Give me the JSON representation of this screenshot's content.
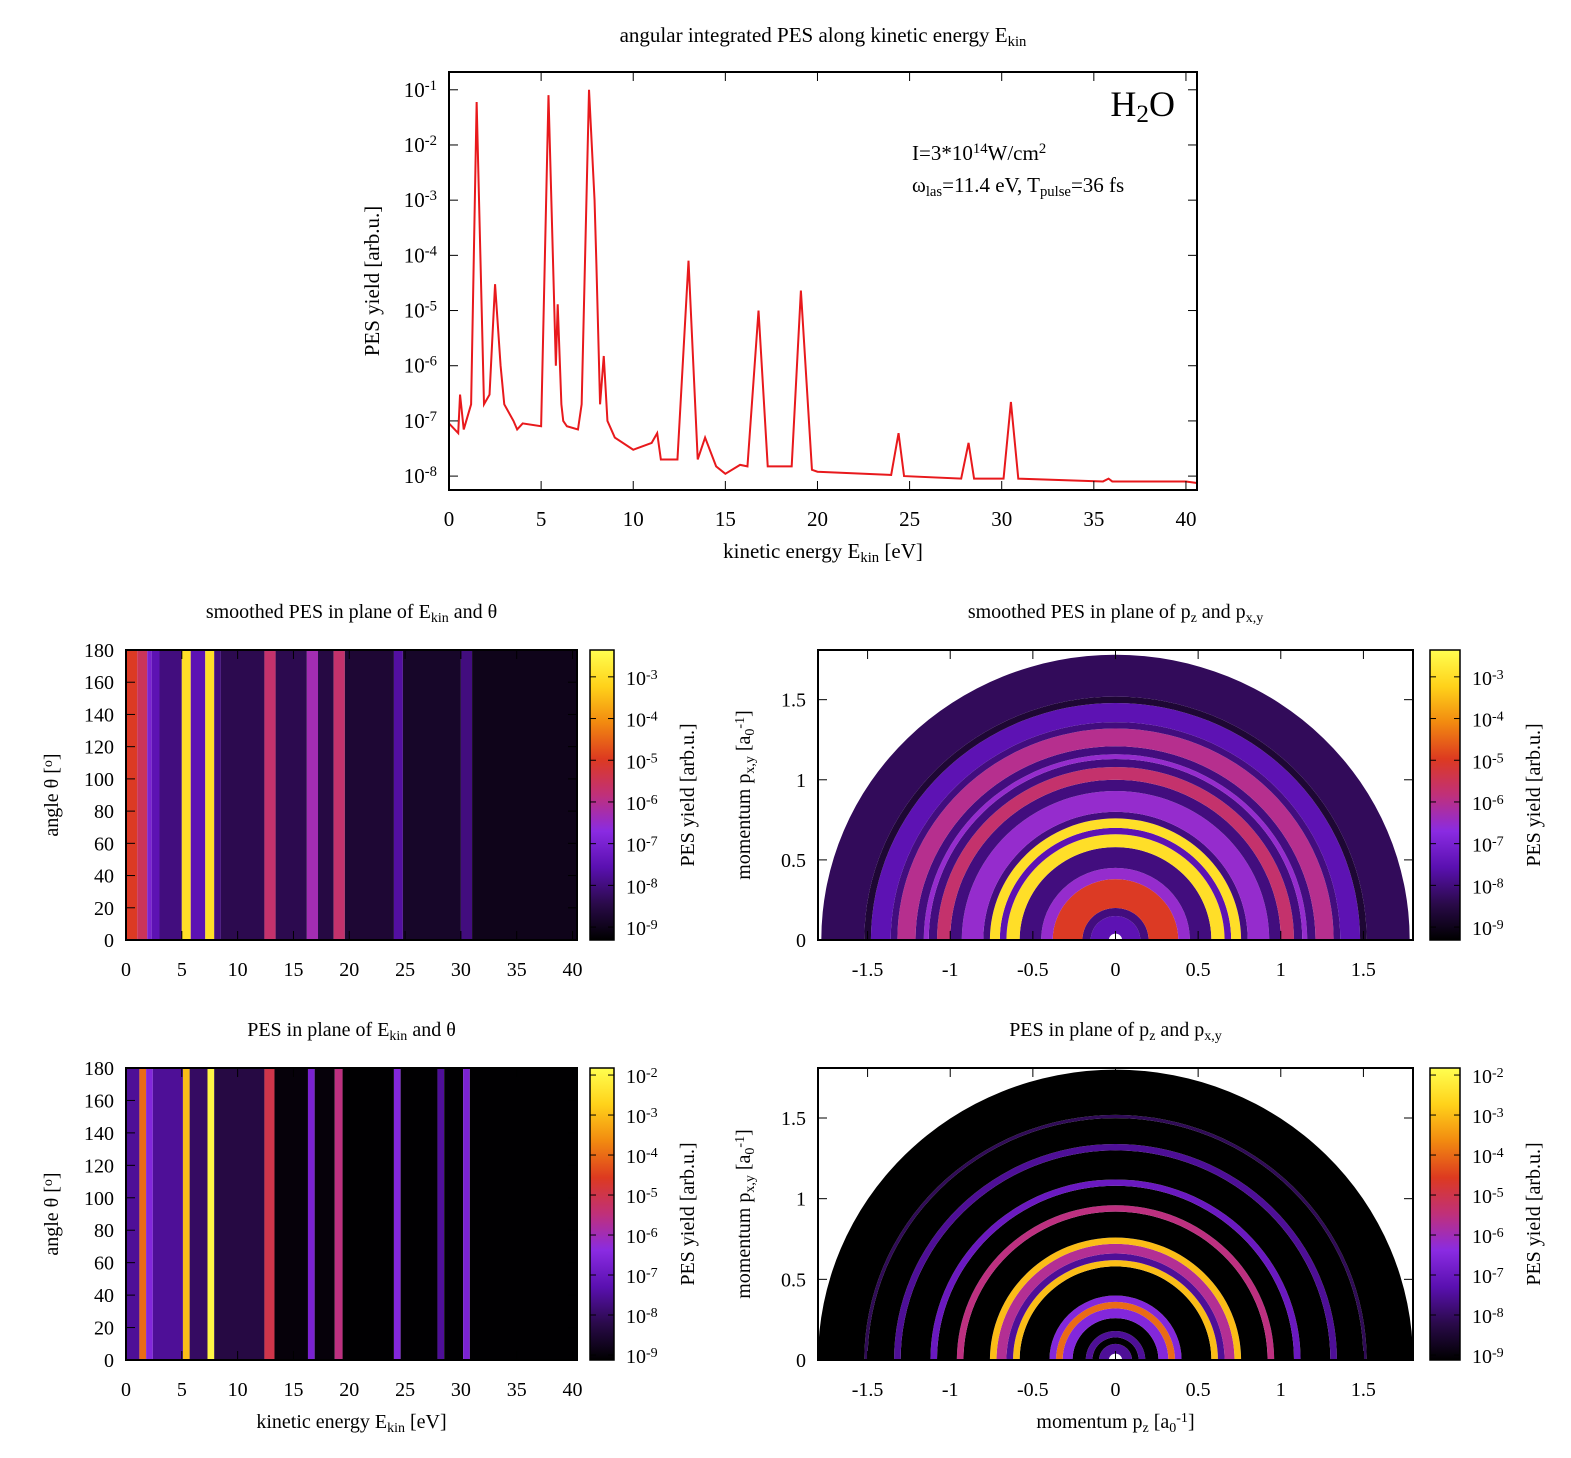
{
  "chart_data": [
    {
      "type": "line",
      "title": [
        "angular integrated PES along kinetic energy E",
        {
          "sub": "kin"
        }
      ],
      "xlabel": [
        "kinetic energy E",
        {
          "sub": "kin"
        },
        " [eV]"
      ],
      "ylabel": "PES yield [arb.u.]",
      "annotations": [
        [
          "H",
          {
            "sub": "2"
          },
          "O"
        ],
        [
          "I=3*10",
          {
            "sup": "14"
          },
          "W/cm",
          {
            "sup": "2"
          }
        ],
        [
          "ω",
          {
            "sub": "las"
          },
          "=11.4 eV, T",
          {
            "sub": "pulse"
          },
          "=36 fs"
        ]
      ],
      "color": "#e8191c",
      "log_y": true,
      "xlim": [
        0,
        40.6
      ],
      "ylim": [
        5.6e-09,
        0.21
      ],
      "xticks": [
        0,
        5,
        10,
        15,
        20,
        25,
        30,
        35,
        40
      ],
      "yticks": [
        {
          "value": 1e-08,
          "label": [
            "10",
            {
              "sup": "-8"
            }
          ]
        },
        {
          "value": 1e-07,
          "label": [
            "10",
            {
              "sup": "-7"
            }
          ]
        },
        {
          "value": 1e-06,
          "label": [
            "10",
            {
              "sup": "-6"
            }
          ]
        },
        {
          "value": 1e-05,
          "label": [
            "10",
            {
              "sup": "-5"
            }
          ]
        },
        {
          "value": 0.0001,
          "label": [
            "10",
            {
              "sup": "-4"
            }
          ]
        },
        {
          "value": 0.001,
          "label": [
            "10",
            {
              "sup": "-3"
            }
          ]
        },
        {
          "value": 0.01,
          "label": [
            "10",
            {
              "sup": "-2"
            }
          ]
        },
        {
          "value": 0.1,
          "label": [
            "10",
            {
              "sup": "-1"
            }
          ]
        }
      ],
      "x": [
        0,
        0.5,
        0.6,
        0.8,
        1.2,
        1.5,
        1.9,
        2.2,
        2.5,
        2.8,
        3.0,
        3.5,
        3.7,
        4.0,
        5.0,
        5.4,
        5.8,
        5.9,
        6.1,
        6.2,
        6.4,
        7.0,
        7.2,
        7.6,
        7.9,
        8.0,
        8.2,
        8.4,
        8.6,
        9.0,
        10,
        11,
        11.3,
        11.5,
        12.4,
        13.0,
        13.5,
        13.9,
        14.5,
        15,
        15.8,
        16.2,
        16.8,
        17.3,
        18.6,
        19.1,
        19.7,
        20,
        24,
        24.4,
        24.7,
        27.8,
        28.2,
        28.5,
        30.1,
        30.5,
        30.9,
        35.5,
        35.8,
        36,
        40,
        40.6
      ],
      "values": [
        9e-08,
        6e-08,
        3e-07,
        7e-08,
        2e-07,
        0.06,
        2e-07,
        3e-07,
        3e-05,
        1e-06,
        2e-07,
        1e-07,
        7e-08,
        9e-08,
        8e-08,
        0.08,
        1e-06,
        1.3e-05,
        2e-07,
        1e-07,
        8e-08,
        7e-08,
        2e-07,
        0.1,
        0.001,
        7e-05,
        2e-07,
        1.5e-06,
        1e-07,
        5e-08,
        3e-08,
        4e-08,
        6e-08,
        2e-08,
        2e-08,
        8e-05,
        2e-08,
        5e-08,
        1.5e-08,
        1.1e-08,
        1.6e-08,
        1.5e-08,
        1e-05,
        1.5e-08,
        1.5e-08,
        2.3e-05,
        1.3e-08,
        1.2e-08,
        1.05e-08,
        6e-08,
        1e-08,
        9e-09,
        4e-08,
        9e-09,
        9e-09,
        2.2e-07,
        9e-09,
        8e-09,
        9e-09,
        8e-09,
        8e-09,
        7.5e-09
      ]
    },
    {
      "type": "heatmap",
      "title": [
        "smoothed PES in plane of E",
        {
          "sub": "kin"
        },
        " and θ"
      ],
      "ylabel": [
        "angle θ [",
        {
          "sup": "o"
        },
        "]"
      ],
      "zlabel": "PES yield [arb.u.]",
      "xlim": [
        0,
        40.4
      ],
      "ylim": [
        0,
        180
      ],
      "xticks": [
        0,
        5,
        10,
        15,
        20,
        25,
        30,
        35,
        40
      ],
      "yticks": [
        0,
        20,
        40,
        60,
        80,
        100,
        120,
        140,
        160,
        180
      ],
      "log_z": true,
      "zlim": [
        4.9e-10,
        0.0044
      ],
      "zticks": [
        {
          "value": 1e-09,
          "label": [
            "10",
            {
              "sup": "-9"
            }
          ]
        },
        {
          "value": 1e-08,
          "label": [
            "10",
            {
              "sup": "-8"
            }
          ]
        },
        {
          "value": 1e-07,
          "label": [
            "10",
            {
              "sup": "-7"
            }
          ]
        },
        {
          "value": 1e-06,
          "label": [
            "10",
            {
              "sup": "-6"
            }
          ]
        },
        {
          "value": 1e-05,
          "label": [
            "10",
            {
              "sup": "-5"
            }
          ]
        },
        {
          "value": 0.0001,
          "label": [
            "10",
            {
              "sup": "-4"
            }
          ]
        },
        {
          "value": 0.001,
          "label": [
            "10",
            {
              "sup": "-3"
            }
          ]
        }
      ],
      "colormap": [
        "#000000",
        "#2a0a4a",
        "#5a10b0",
        "#8a2be2",
        "#c0307a",
        "#dd3a20",
        "#f28a10",
        "#ffd21a",
        "#ffff50"
      ],
      "x_bins": [
        0,
        1,
        1.9,
        2.3,
        3.0,
        5.0,
        5.8,
        7.1,
        7.9,
        8.5,
        12.4,
        13.4,
        16.2,
        17.2,
        18.6,
        19.6,
        24.0,
        24.8,
        30.0,
        31.0,
        40.4
      ],
      "values": [
        1e-05,
        3e-06,
        1e-07,
        3e-08,
        1e-08,
        0.001,
        3e-08,
        0.001,
        1e-08,
        4e-09,
        2e-06,
        4e-09,
        5e-07,
        3e-09,
        2e-06,
        2e-09,
        2e-08,
        1.5e-09,
        1e-08,
        1e-09
      ]
    },
    {
      "type": "polar_heatmap",
      "title": [
        "smoothed PES in plane of p",
        {
          "sub": "z"
        },
        " and p",
        {
          "sub": "x,y"
        }
      ],
      "ylabel": [
        "momentum p",
        {
          "sub": "x,y"
        },
        " [a",
        {
          "sub": "0"
        },
        {
          "sup": "-1"
        },
        "]"
      ],
      "zlabel": "PES yield [arb.u.]",
      "xlim": [
        -1.8,
        1.8
      ],
      "ylim": [
        0,
        1.81
      ],
      "xticks": [
        -1.5,
        -1,
        -0.5,
        0,
        0.5,
        1,
        1.5
      ],
      "yticks": [
        0,
        0.5,
        1,
        1.5
      ],
      "log_z": true,
      "zlim": [
        4.9e-10,
        0.0044
      ],
      "zticks": [
        {
          "value": 1e-09,
          "label": [
            "10",
            {
              "sup": "-9"
            }
          ]
        },
        {
          "value": 1e-08,
          "label": [
            "10",
            {
              "sup": "-8"
            }
          ]
        },
        {
          "value": 1e-07,
          "label": [
            "10",
            {
              "sup": "-7"
            }
          ]
        },
        {
          "value": 1e-06,
          "label": [
            "10",
            {
              "sup": "-6"
            }
          ]
        },
        {
          "value": 1e-05,
          "label": [
            "10",
            {
              "sup": "-5"
            }
          ]
        },
        {
          "value": 0.0001,
          "label": [
            "10",
            {
              "sup": "-4"
            }
          ]
        },
        {
          "value": 0.001,
          "label": [
            "10",
            {
              "sup": "-3"
            }
          ]
        }
      ],
      "colormap": [
        "#000000",
        "#2a0a4a",
        "#5a10b0",
        "#8a2be2",
        "#c0307a",
        "#dd3a20",
        "#f28a10",
        "#ffd21a",
        "#ffff50"
      ],
      "r_bins": [
        0.04,
        0.15,
        0.2,
        0.38,
        0.45,
        0.58,
        0.66,
        0.7,
        0.76,
        0.8,
        0.93,
        1.0,
        1.08,
        1.13,
        1.16,
        1.21,
        1.32,
        1.36,
        1.48,
        1.52,
        1.78
      ],
      "values": [
        3e-08,
        1e-08,
        1e-05,
        3e-07,
        1e-08,
        0.001,
        3e-08,
        0.001,
        1e-08,
        3e-07,
        1e-08,
        2e-06,
        1e-08,
        3e-07,
        1e-08,
        1e-06,
        1e-08,
        3e-08,
        2e-09,
        5e-09
      ]
    },
    {
      "type": "heatmap",
      "title": [
        "PES in plane of E",
        {
          "sub": "kin"
        },
        " and θ"
      ],
      "xlabel": [
        "kinetic energy E",
        {
          "sub": "kin"
        },
        " [eV]"
      ],
      "ylabel": [
        "angle θ [",
        {
          "sup": "o"
        },
        "]"
      ],
      "zlabel": "PES yield [arb.u.]",
      "xlim": [
        0,
        40.4
      ],
      "ylim": [
        0,
        180
      ],
      "xticks": [
        0,
        5,
        10,
        15,
        20,
        25,
        30,
        35,
        40
      ],
      "yticks": [
        0,
        20,
        40,
        60,
        80,
        100,
        120,
        140,
        160,
        180
      ],
      "log_z": true,
      "zlim": [
        7.5e-10,
        0.015
      ],
      "zticks": [
        {
          "value": 1e-09,
          "label": [
            "10",
            {
              "sup": "-9"
            }
          ]
        },
        {
          "value": 1e-08,
          "label": [
            "10",
            {
              "sup": "-8"
            }
          ]
        },
        {
          "value": 1e-07,
          "label": [
            "10",
            {
              "sup": "-7"
            }
          ]
        },
        {
          "value": 1e-06,
          "label": [
            "10",
            {
              "sup": "-6"
            }
          ]
        },
        {
          "value": 1e-05,
          "label": [
            "10",
            {
              "sup": "-5"
            }
          ]
        },
        {
          "value": 0.0001,
          "label": [
            "10",
            {
              "sup": "-4"
            }
          ]
        },
        {
          "value": 0.001,
          "label": [
            "10",
            {
              "sup": "-3"
            }
          ]
        },
        {
          "value": 0.01,
          "label": [
            "10",
            {
              "sup": "-2"
            }
          ]
        }
      ],
      "colormap": [
        "#000000",
        "#2a0a4a",
        "#5a10b0",
        "#8a2be2",
        "#c0307a",
        "#dd3a20",
        "#f28a10",
        "#ffd21a",
        "#ffff50"
      ],
      "x_bins": [
        0,
        1.2,
        1.8,
        2.4,
        5.1,
        5.7,
        7.3,
        7.9,
        12.4,
        13.3,
        16.3,
        16.9,
        18.7,
        19.4,
        24.0,
        24.6,
        27.9,
        28.5,
        30.2,
        30.8,
        40.4
      ],
      "values": [
        3e-08,
        0.0001,
        3e-07,
        3e-08,
        0.001,
        1e-08,
        0.01,
        5e-09,
        1e-05,
        1e-09,
        2e-07,
        1e-09,
        3e-06,
        8e-10,
        3e-07,
        8e-10,
        3e-08,
        8e-10,
        2e-07,
        8e-10
      ]
    },
    {
      "type": "polar_heatmap",
      "title": [
        "PES in plane of p",
        {
          "sub": "z"
        },
        " and p",
        {
          "sub": "x,y"
        }
      ],
      "xlabel": [
        "momentum p",
        {
          "sub": "z"
        },
        " [a",
        {
          "sub": "0"
        },
        {
          "sup": "-1"
        },
        "]"
      ],
      "ylabel": [
        "momentum p",
        {
          "sub": "x,y"
        },
        " [a",
        {
          "sub": "0"
        },
        {
          "sup": "-1"
        },
        "]"
      ],
      "zlabel": "PES yield [arb.u.]",
      "xlim": [
        -1.8,
        1.8
      ],
      "ylim": [
        0,
        1.81
      ],
      "xticks": [
        -1.5,
        -1,
        -0.5,
        0,
        0.5,
        1,
        1.5
      ],
      "yticks": [
        0,
        0.5,
        1,
        1.5
      ],
      "log_z": true,
      "zlim": [
        7.5e-10,
        0.015
      ],
      "zticks": [
        {
          "value": 1e-09,
          "label": [
            "10",
            {
              "sup": "-9"
            }
          ]
        },
        {
          "value": 1e-08,
          "label": [
            "10",
            {
              "sup": "-8"
            }
          ]
        },
        {
          "value": 1e-07,
          "label": [
            "10",
            {
              "sup": "-7"
            }
          ]
        },
        {
          "value": 1e-06,
          "label": [
            "10",
            {
              "sup": "-6"
            }
          ]
        },
        {
          "value": 1e-05,
          "label": [
            "10",
            {
              "sup": "-5"
            }
          ]
        },
        {
          "value": 0.0001,
          "label": [
            "10",
            {
              "sup": "-4"
            }
          ]
        },
        {
          "value": 0.001,
          "label": [
            "10",
            {
              "sup": "-3"
            }
          ]
        },
        {
          "value": 0.01,
          "label": [
            "10",
            {
              "sup": "-2"
            }
          ]
        }
      ],
      "colormap": [
        "#000000",
        "#2a0a4a",
        "#5a10b0",
        "#8a2be2",
        "#c0307a",
        "#dd3a20",
        "#f28a10",
        "#ffd21a",
        "#ffff50"
      ],
      "r_bins": [
        0.04,
        0.1,
        0.14,
        0.18,
        0.26,
        0.32,
        0.36,
        0.4,
        0.58,
        0.62,
        0.66,
        0.72,
        0.76,
        0.92,
        0.96,
        1.08,
        1.12,
        1.3,
        1.34,
        1.5,
        1.52,
        1.8
      ],
      "values": [
        3e-08,
        5e-10,
        3e-08,
        5e-10,
        3e-07,
        0.0001,
        3e-07,
        5e-10,
        0.001,
        3e-08,
        2e-06,
        0.001,
        5e-10,
        3e-06,
        5e-10,
        1e-07,
        5e-10,
        3e-08,
        5e-10,
        8e-09,
        5e-10
      ]
    }
  ]
}
